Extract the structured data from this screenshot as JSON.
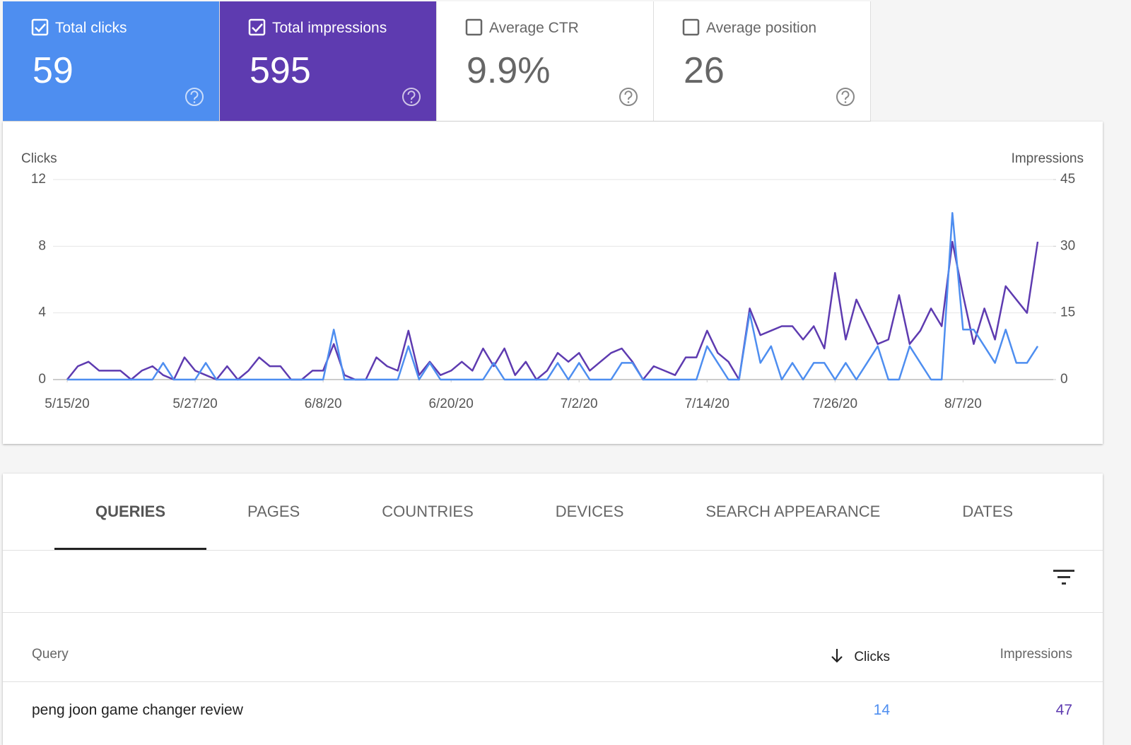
{
  "cards": [
    {
      "label": "Total clicks",
      "value": 59,
      "checked": true,
      "color": "#4e8ef0"
    },
    {
      "label": "Total impressions",
      "value": 595,
      "checked": true,
      "color": "#5e3bb0"
    },
    {
      "label": "Average CTR",
      "value": "9.9%",
      "checked": false,
      "color": "#5e3bb0"
    },
    {
      "label": "Average position",
      "value": 26,
      "checked": false,
      "color": "#5e3bb0"
    }
  ],
  "chart_data": {
    "type": "line",
    "ylabel": "Clicks",
    "y2label": "Impressions",
    "x": [
      "5/15/20",
      "5/16/20",
      "5/17/20",
      "5/18/20",
      "5/19/20",
      "5/20/20",
      "5/21/20",
      "5/22/20",
      "5/23/20",
      "5/24/20",
      "5/25/20",
      "5/26/20",
      "5/27/20",
      "5/28/20",
      "5/29/20",
      "5/30/20",
      "5/31/20",
      "6/1/20",
      "6/2/20",
      "6/3/20",
      "6/4/20",
      "6/5/20",
      "6/6/20",
      "6/7/20",
      "6/8/20",
      "6/9/20",
      "6/10/20",
      "6/11/20",
      "6/12/20",
      "6/13/20",
      "6/14/20",
      "6/15/20",
      "6/16/20",
      "6/17/20",
      "6/18/20",
      "6/19/20",
      "6/20/20",
      "6/21/20",
      "6/22/20",
      "6/23/20",
      "6/24/20",
      "6/25/20",
      "6/26/20",
      "6/27/20",
      "6/28/20",
      "6/29/20",
      "6/30/20",
      "7/1/20",
      "7/2/20",
      "7/3/20",
      "7/4/20",
      "7/5/20",
      "7/6/20",
      "7/7/20",
      "7/8/20",
      "7/9/20",
      "7/10/20",
      "7/11/20",
      "7/12/20",
      "7/13/20",
      "7/14/20",
      "7/15/20",
      "7/16/20",
      "7/17/20",
      "7/18/20",
      "7/19/20",
      "7/20/20",
      "7/21/20",
      "7/22/20",
      "7/23/20",
      "7/24/20",
      "7/25/20",
      "7/26/20",
      "7/27/20",
      "7/28/20",
      "7/29/20",
      "7/30/20",
      "7/31/20",
      "8/1/20",
      "8/2/20",
      "8/3/20",
      "8/4/20",
      "8/5/20",
      "8/6/20",
      "8/7/20",
      "8/8/20",
      "8/9/20",
      "8/10/20",
      "8/11/20",
      "8/12/20",
      "8/13/20",
      "8/14/20"
    ],
    "xticks": [
      "5/15/20",
      "5/27/20",
      "6/8/20",
      "6/20/20",
      "7/2/20",
      "7/14/20",
      "7/26/20",
      "8/7/20"
    ],
    "series": [
      {
        "name": "Impressions",
        "color": "#5e3bb0",
        "axis": "y2",
        "values": [
          0,
          3,
          4,
          2,
          2,
          2,
          0,
          2,
          3,
          1,
          0,
          5,
          2,
          1,
          0,
          3,
          0,
          2,
          5,
          3,
          3,
          0,
          0,
          2,
          2,
          8,
          1,
          0,
          0,
          5,
          3,
          2,
          11,
          1,
          4,
          1,
          2,
          4,
          2,
          7,
          3,
          7,
          1,
          4,
          0,
          2,
          6,
          4,
          6,
          2,
          4,
          6,
          7,
          4,
          0,
          3,
          2,
          1,
          5,
          5,
          11,
          6,
          4,
          0,
          16,
          10,
          11,
          12,
          12,
          9,
          12,
          7,
          24,
          9,
          18,
          13,
          8,
          9,
          19,
          8,
          11,
          16,
          12,
          31,
          19,
          8,
          16,
          9,
          21,
          18,
          15,
          31
        ]
      },
      {
        "name": "Clicks",
        "color": "#4e8ef0",
        "axis": "y",
        "values": [
          0,
          0,
          0,
          0,
          0,
          0,
          0,
          0,
          0,
          1,
          0,
          0,
          0,
          1,
          0,
          0,
          0,
          0,
          0,
          0,
          0,
          0,
          0,
          0,
          0,
          3,
          0,
          0,
          0,
          0,
          0,
          0,
          2,
          0,
          1,
          0,
          0,
          0,
          0,
          0,
          1,
          0,
          0,
          0,
          0,
          0,
          1,
          0,
          1,
          0,
          0,
          0,
          1,
          1,
          0,
          0,
          0,
          0,
          0,
          0,
          2,
          1,
          0,
          0,
          4,
          1,
          2,
          0,
          1,
          0,
          1,
          1,
          0,
          1,
          0,
          1,
          2,
          0,
          0,
          2,
          1,
          0,
          0,
          10,
          3,
          3,
          2,
          1,
          3,
          1,
          1,
          2
        ]
      }
    ],
    "ylim": [
      0,
      12
    ],
    "yticks": [
      0,
      4,
      8,
      12
    ],
    "y2lim": [
      0,
      45
    ],
    "y2ticks": [
      0,
      15,
      30,
      45
    ],
    "grid": true
  },
  "tabs": {
    "items": [
      "QUERIES",
      "PAGES",
      "COUNTRIES",
      "DEVICES",
      "SEARCH APPEARANCE",
      "DATES"
    ],
    "active": 0
  },
  "table": {
    "columns": [
      "Query",
      "Clicks",
      "Impressions"
    ],
    "sort_column": 1,
    "rows": [
      [
        "peng joon game changer review",
        14,
        47
      ]
    ]
  }
}
